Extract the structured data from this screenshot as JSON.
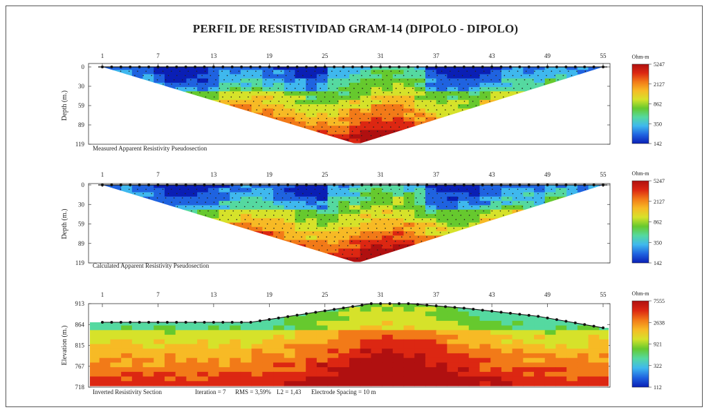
{
  "title": "PERFIL DE RESISTIVIDAD GRAM-14 (DIPOLO - DIPOLO)",
  "chart_data": [
    {
      "type": "heatmap",
      "caption": "Measured Apparent Resistivity Pseudosection",
      "ylabel": "Depth (m.)",
      "x_ticks": [
        "1",
        "7",
        "13",
        "19",
        "25",
        "31",
        "37",
        "43",
        "49",
        "55"
      ],
      "y_ticks": [
        "0",
        "30",
        "59",
        "89",
        "119"
      ],
      "ylim": [
        0,
        119
      ],
      "colorbar": {
        "unit": "Ohm-m",
        "ticks": [
          "5247",
          "2127",
          "862",
          "350",
          "142"
        ],
        "range": [
          142,
          5247
        ],
        "scale": "log"
      },
      "grid": false
    },
    {
      "type": "heatmap",
      "caption": "Calculated Apparent Resistivity Pseudosection",
      "ylabel": "Depth (m.)",
      "x_ticks": [
        "1",
        "7",
        "13",
        "19",
        "25",
        "31",
        "37",
        "43",
        "49",
        "55"
      ],
      "y_ticks": [
        "0",
        "30",
        "59",
        "89",
        "119"
      ],
      "ylim": [
        0,
        119
      ],
      "colorbar": {
        "unit": "Ohm-m",
        "ticks": [
          "5247",
          "2127",
          "862",
          "350",
          "142"
        ],
        "range": [
          142,
          5247
        ],
        "scale": "log"
      },
      "grid": false
    },
    {
      "type": "heatmap",
      "caption": "Inverted Resistivity Section",
      "stats": {
        "iteration": "Iteration = 7",
        "rms": "RMS = 3,59%",
        "l2": "L2 = 1,43",
        "spacing": "Electrode Spacing = 10 m"
      },
      "ylabel": "Elevation (m.)",
      "x_ticks": [
        "1",
        "7",
        "13",
        "19",
        "25",
        "31",
        "37",
        "43",
        "49",
        "55"
      ],
      "y_ticks": [
        "913",
        "864",
        "815",
        "767",
        "718"
      ],
      "ylim": [
        718,
        913
      ],
      "colorbar": {
        "unit": "Ohm-m",
        "ticks": [
          "7555",
          "2638",
          "921",
          "322",
          "112"
        ],
        "range": [
          112,
          7555
        ],
        "scale": "log"
      },
      "grid": false
    }
  ],
  "colors": {
    "ramp": [
      "#0a1fb5",
      "#1f63e0",
      "#3fb8ee",
      "#55d9a0",
      "#66c92e",
      "#d6e22a",
      "#f7ba25",
      "#f27a18",
      "#dc2712",
      "#b01010"
    ]
  }
}
